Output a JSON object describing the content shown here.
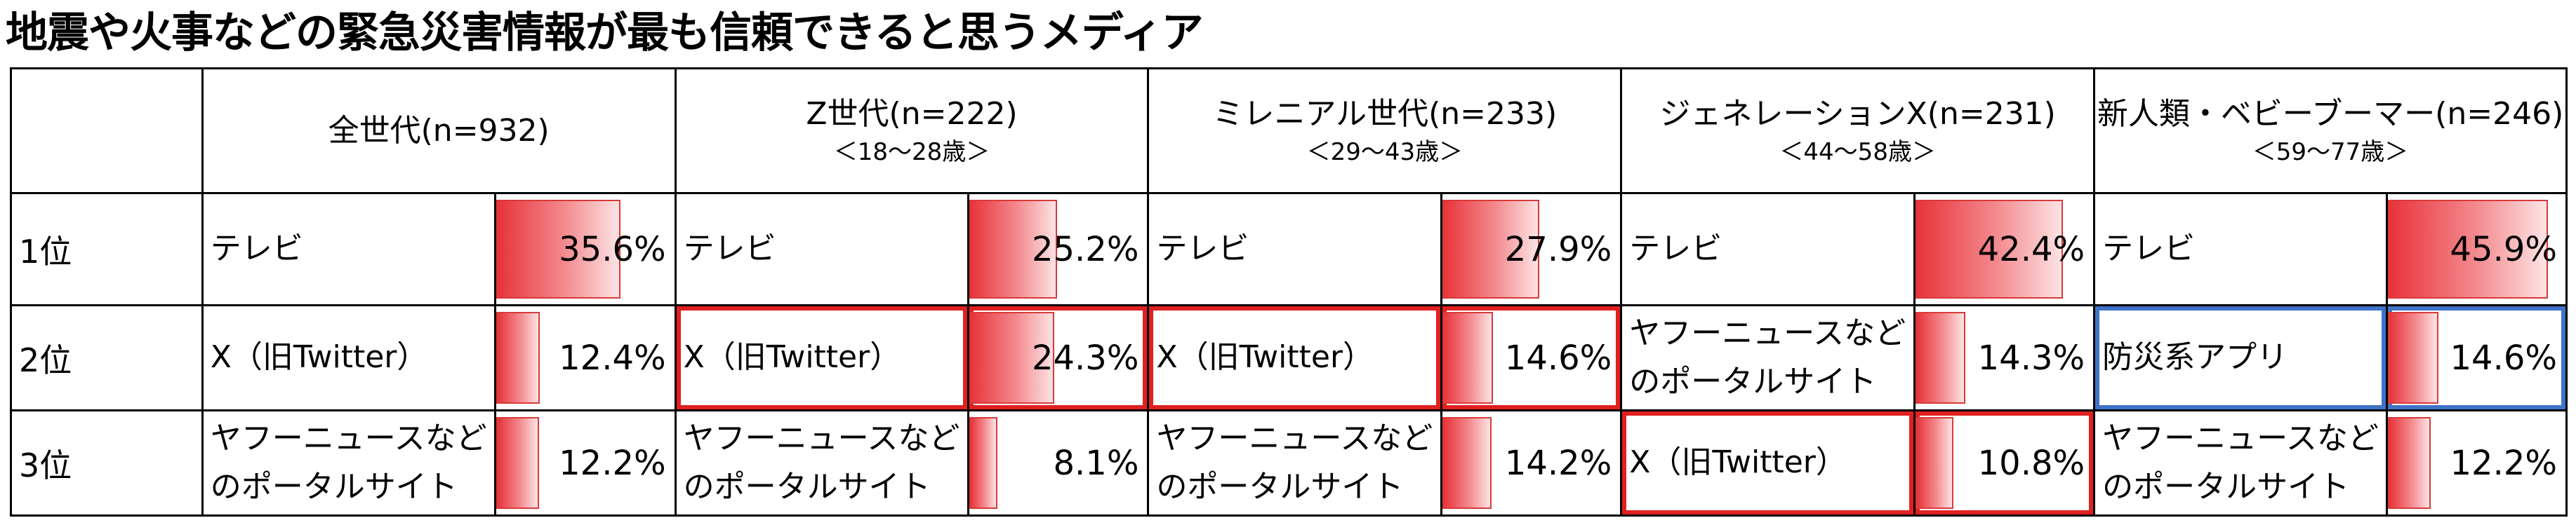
{
  "title": "地震や火事などの緊急災害情報が最も信頼できると思うメディア",
  "colors": {
    "bar_start": "#e8333a",
    "bar_end": "#fde3e4",
    "highlight_red": "#e02020",
    "highlight_blue": "#3f73c8"
  },
  "chart_data": {
    "type": "table",
    "title": "地震や火事などの緊急災害情報が最も信頼できると思うメディア",
    "rank_labels": [
      "1位",
      "2位",
      "3位"
    ],
    "groups": [
      {
        "label": "全世代(n=932)",
        "age": "",
        "ranks": [
          {
            "media": "テレビ",
            "value": 35.6,
            "display": "35.6%"
          },
          {
            "media": "X（旧Twitter）",
            "value": 12.4,
            "display": "12.4%"
          },
          {
            "media": "ヤフーニュースなどのポータルサイト",
            "value": 12.2,
            "display": "12.2%"
          }
        ]
      },
      {
        "label": "Z世代(n=222)",
        "age": "＜18～28歳＞",
        "ranks": [
          {
            "media": "テレビ",
            "value": 25.2,
            "display": "25.2%"
          },
          {
            "media": "X（旧Twitter）",
            "value": 24.3,
            "display": "24.3%",
            "highlight": "red"
          },
          {
            "media": "ヤフーニュースなどのポータルサイト",
            "value": 8.1,
            "display": "8.1%"
          }
        ]
      },
      {
        "label": "ミレニアル世代(n=233)",
        "age": "＜29～43歳＞",
        "ranks": [
          {
            "media": "テレビ",
            "value": 27.9,
            "display": "27.9%"
          },
          {
            "media": "X（旧Twitter）",
            "value": 14.6,
            "display": "14.6%",
            "highlight": "red"
          },
          {
            "media": "ヤフーニュースなどのポータルサイト",
            "value": 14.2,
            "display": "14.2%"
          }
        ]
      },
      {
        "label": "ジェネレーションX(n=231)",
        "age": "＜44～58歳＞",
        "ranks": [
          {
            "media": "テレビ",
            "value": 42.4,
            "display": "42.4%"
          },
          {
            "media": "ヤフーニュースなどのポータルサイト",
            "value": 14.3,
            "display": "14.3%"
          },
          {
            "media": "X（旧Twitter）",
            "value": 10.8,
            "display": "10.8%",
            "highlight": "red"
          }
        ]
      },
      {
        "label": "新人類・ベビーブーマー(n=246)",
        "age": "＜59～77歳＞",
        "ranks": [
          {
            "media": "テレビ",
            "value": 45.9,
            "display": "45.9%"
          },
          {
            "media": "防災系アプリ",
            "value": 14.6,
            "display": "14.6%",
            "highlight": "blue"
          },
          {
            "media": "ヤフーニュースなどのポータルサイト",
            "value": 12.2,
            "display": "12.2%"
          }
        ]
      }
    ],
    "bar_scale_max": 50
  }
}
